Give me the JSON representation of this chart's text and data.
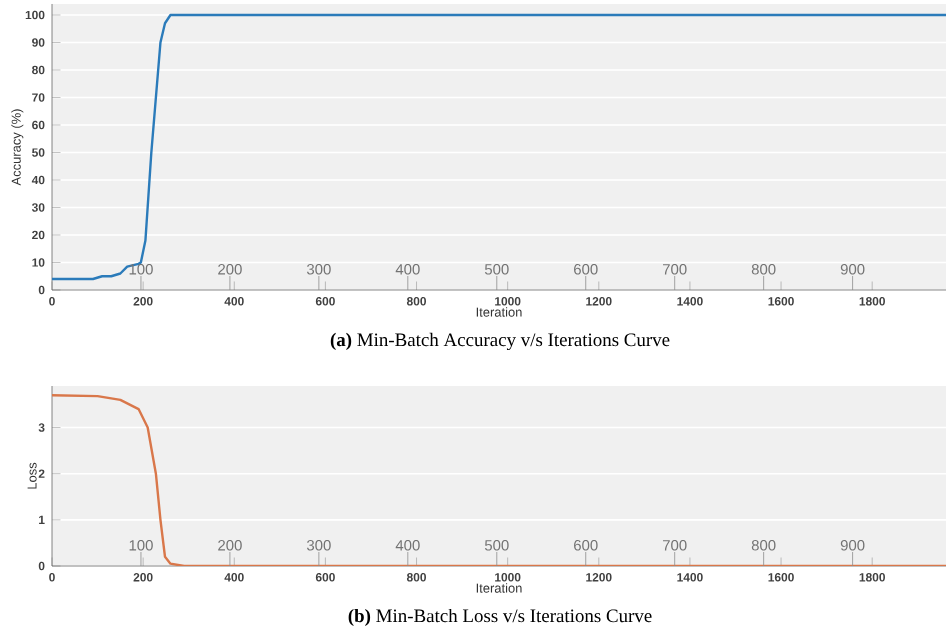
{
  "chart_data": [
    {
      "type": "line",
      "title": "**(a)** Min-Batch Accuracy v/s Iterations Curve",
      "xlabel": "Iteration",
      "ylabel": "Accuracy (%)",
      "x": [
        0,
        90,
        110,
        130,
        150,
        165,
        190,
        195,
        205,
        218,
        238,
        248,
        260,
        1962
      ],
      "series": [
        {
          "color": "#2b7bba",
          "values": [
            4,
            4,
            5,
            5,
            6,
            8.5,
            9.5,
            10,
            18,
            50,
            90,
            97,
            100,
            100
          ]
        }
      ],
      "xlim": [
        0,
        1962
      ],
      "xticks": [
        0,
        200,
        400,
        600,
        800,
        1000,
        1200,
        1400,
        1600,
        1800
      ],
      "ylim": [
        0,
        104
      ],
      "yticks": [
        0,
        10,
        20,
        30,
        40,
        50,
        60,
        70,
        80,
        90,
        100
      ],
      "x2lim": [
        0,
        1005
      ],
      "x2ticks": [
        100,
        200,
        300,
        400,
        500,
        600,
        700,
        800,
        900
      ],
      "grid": "y"
    },
    {
      "type": "line",
      "title": "**(b)** Min-Batch Loss v/s Iterations Curve",
      "xlabel": "Iteration",
      "ylabel": "Loss",
      "x": [
        0,
        100,
        150,
        190,
        210,
        228,
        238,
        248,
        260,
        290,
        1962
      ],
      "series": [
        {
          "color": "#d9774a",
          "values": [
            3.7,
            3.68,
            3.6,
            3.4,
            3.0,
            2,
            1,
            0.2,
            0.05,
            0,
            0
          ]
        }
      ],
      "xlim": [
        0,
        1962
      ],
      "xticks": [
        0,
        200,
        400,
        600,
        800,
        1000,
        1200,
        1400,
        1600,
        1800
      ],
      "ylim": [
        0,
        3.9
      ],
      "yticks": [
        0,
        1,
        2,
        3
      ],
      "x2lim": [
        0,
        1005
      ],
      "x2ticks": [
        100,
        200,
        300,
        400,
        500,
        600,
        700,
        800,
        900
      ],
      "grid": "y"
    }
  ]
}
